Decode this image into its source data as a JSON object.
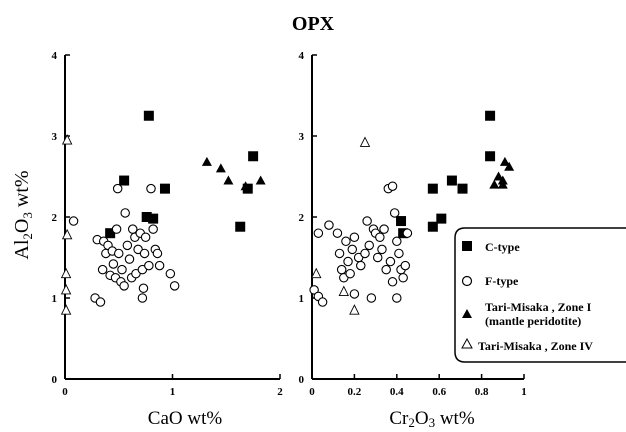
{
  "title": "OPX",
  "legend": {
    "c_type": "C-type",
    "f_type": "F-type",
    "zone_1_line1": "Tari-Misaka , Zone I",
    "zone_1_line2": "(mantle peridotite)",
    "zone_4": "Tari-Misaka , Zone IV"
  },
  "chart_data": [
    {
      "type": "scatter",
      "title": "OPX",
      "xlabel": "CaO wt%",
      "ylabel": "Al2O3 wt%",
      "xlim": [
        0,
        2
      ],
      "ylim": [
        0,
        4
      ],
      "xticks": [
        "0",
        "1",
        "2"
      ],
      "yticks": [
        "0",
        "1",
        "2",
        "3",
        "4"
      ],
      "series": [
        {
          "name": "C-type",
          "marker": "square-filled",
          "points": [
            [
              0.42,
              1.8
            ],
            [
              0.55,
              2.45
            ],
            [
              0.76,
              2.0
            ],
            [
              0.78,
              3.25
            ],
            [
              0.82,
              1.98
            ],
            [
              0.93,
              2.35
            ],
            [
              1.63,
              1.88
            ],
            [
              1.7,
              2.35
            ],
            [
              1.75,
              2.75
            ]
          ]
        },
        {
          "name": "F-type",
          "marker": "circle-open",
          "points": [
            [
              0.08,
              1.95
            ],
            [
              0.28,
              1.0
            ],
            [
              0.3,
              1.72
            ],
            [
              0.33,
              0.95
            ],
            [
              0.35,
              1.35
            ],
            [
              0.36,
              1.7
            ],
            [
              0.38,
              1.55
            ],
            [
              0.4,
              1.65
            ],
            [
              0.42,
              1.28
            ],
            [
              0.44,
              1.58
            ],
            [
              0.45,
              1.42
            ],
            [
              0.47,
              1.25
            ],
            [
              0.48,
              1.85
            ],
            [
              0.49,
              2.35
            ],
            [
              0.5,
              1.55
            ],
            [
              0.52,
              1.2
            ],
            [
              0.53,
              1.35
            ],
            [
              0.55,
              1.15
            ],
            [
              0.56,
              2.05
            ],
            [
              0.58,
              1.65
            ],
            [
              0.6,
              1.48
            ],
            [
              0.62,
              1.25
            ],
            [
              0.63,
              1.85
            ],
            [
              0.65,
              1.75
            ],
            [
              0.66,
              1.3
            ],
            [
              0.68,
              1.6
            ],
            [
              0.7,
              1.8
            ],
            [
              0.72,
              1.35
            ],
            [
              0.73,
              1.12
            ],
            [
              0.74,
              1.55
            ],
            [
              0.75,
              1.75
            ],
            [
              0.78,
              1.4
            ],
            [
              0.8,
              2.35
            ],
            [
              0.82,
              1.85
            ],
            [
              0.84,
              1.6
            ],
            [
              0.86,
              1.55
            ],
            [
              0.88,
              1.4
            ],
            [
              0.98,
              1.3
            ],
            [
              1.02,
              1.15
            ],
            [
              0.72,
              1.0
            ]
          ]
        },
        {
          "name": "Tari-Misaka , Zone I",
          "marker": "triangle-filled",
          "points": [
            [
              1.32,
              2.68
            ],
            [
              1.45,
              2.6
            ],
            [
              1.52,
              2.45
            ],
            [
              1.68,
              2.38
            ],
            [
              1.82,
              2.45
            ]
          ]
        },
        {
          "name": "Tari-Misaka , Zone IV",
          "marker": "triangle-open",
          "points": [
            [
              0.02,
              2.95
            ],
            [
              0.02,
              1.78
            ],
            [
              0.01,
              1.3
            ],
            [
              0.01,
              1.1
            ],
            [
              0.01,
              0.85
            ]
          ]
        }
      ]
    },
    {
      "type": "scatter",
      "xlabel": "Cr2O3 wt%",
      "ylabel": "",
      "xlim": [
        0,
        1
      ],
      "ylim": [
        0,
        4
      ],
      "xticks": [
        "0",
        "0.2",
        "0.4",
        "0.6",
        "0.8",
        "1"
      ],
      "yticks": [
        "0",
        "1",
        "2",
        "3",
        "4"
      ],
      "series": [
        {
          "name": "C-type",
          "marker": "square-filled",
          "points": [
            [
              0.42,
              1.95
            ],
            [
              0.43,
              1.8
            ],
            [
              0.57,
              2.35
            ],
            [
              0.57,
              1.88
            ],
            [
              0.61,
              1.98
            ],
            [
              0.66,
              2.45
            ],
            [
              0.71,
              2.35
            ],
            [
              0.84,
              3.25
            ],
            [
              0.84,
              2.75
            ]
          ]
        },
        {
          "name": "F-type",
          "marker": "circle-open",
          "points": [
            [
              0.01,
              1.1
            ],
            [
              0.03,
              1.02
            ],
            [
              0.05,
              0.95
            ],
            [
              0.03,
              1.8
            ],
            [
              0.08,
              1.9
            ],
            [
              0.12,
              1.8
            ],
            [
              0.13,
              1.55
            ],
            [
              0.14,
              1.35
            ],
            [
              0.15,
              1.25
            ],
            [
              0.16,
              1.7
            ],
            [
              0.17,
              1.45
            ],
            [
              0.18,
              1.3
            ],
            [
              0.19,
              1.6
            ],
            [
              0.2,
              1.75
            ],
            [
              0.22,
              1.5
            ],
            [
              0.23,
              1.4
            ],
            [
              0.25,
              1.55
            ],
            [
              0.26,
              1.95
            ],
            [
              0.27,
              1.65
            ],
            [
              0.28,
              1.0
            ],
            [
              0.29,
              1.85
            ],
            [
              0.3,
              1.8
            ],
            [
              0.31,
              1.5
            ],
            [
              0.32,
              1.75
            ],
            [
              0.33,
              1.6
            ],
            [
              0.34,
              1.85
            ],
            [
              0.35,
              1.35
            ],
            [
              0.36,
              2.35
            ],
            [
              0.37,
              1.45
            ],
            [
              0.38,
              1.2
            ],
            [
              0.39,
              2.05
            ],
            [
              0.4,
              1.7
            ],
            [
              0.41,
              1.55
            ],
            [
              0.42,
              1.35
            ],
            [
              0.43,
              1.25
            ],
            [
              0.44,
              1.4
            ],
            [
              0.45,
              1.8
            ],
            [
              0.38,
              2.38
            ],
            [
              0.4,
              1.0
            ],
            [
              0.2,
              1.05
            ]
          ]
        },
        {
          "name": "Tari-Misaka , Zone I",
          "marker": "triangle-filled",
          "points": [
            [
              0.86,
              2.4
            ],
            [
              0.88,
              2.5
            ],
            [
              0.9,
              2.4
            ],
            [
              0.91,
              2.68
            ],
            [
              0.93,
              2.62
            ],
            [
              0.9,
              2.45
            ]
          ]
        },
        {
          "name": "Tari-Misaka , Zone IV",
          "marker": "triangle-open",
          "points": [
            [
              0.25,
              2.92
            ],
            [
              0.02,
              1.3
            ],
            [
              0.15,
              1.08
            ],
            [
              0.2,
              0.85
            ]
          ]
        }
      ]
    }
  ]
}
